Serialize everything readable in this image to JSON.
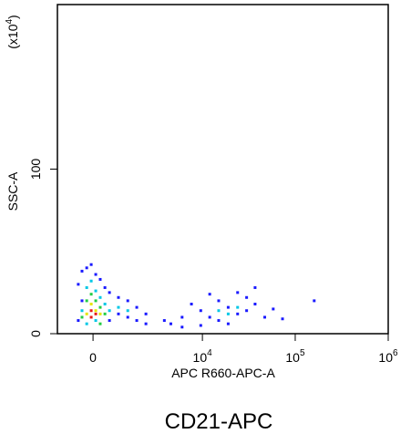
{
  "chart_data": {
    "type": "scatter",
    "title": "CD21-APC",
    "xlabel": "APC R660-APC-A",
    "ylabel": "SSC-A",
    "ylabel_unit": [
      "(x10",
      "4",
      ")"
    ],
    "xscale": "biexponential",
    "xlim": [
      -1340,
      1000000
    ],
    "ylim": [
      0,
      200
    ],
    "xticks": [
      0,
      {
        "value": 10000,
        "label": "10",
        "exponent": "4"
      },
      {
        "value": 100000,
        "label": "10",
        "exponent": "5"
      },
      {
        "value": 1000000,
        "label": "10",
        "exponent": "6"
      }
    ],
    "yticks": [
      0,
      100
    ],
    "series": [
      {
        "color": "#1a1aff",
        "x": [
          -500,
          -370,
          -210,
          -60,
          90,
          240,
          400,
          560,
          900,
          1300,
          1750,
          2300,
          3800,
          6000,
          7600,
          9600,
          12000,
          15000,
          19000,
          24000,
          30000,
          37000,
          47000,
          58000,
          73000,
          160000,
          -500,
          -370,
          560,
          1300,
          2300,
          9600,
          15000,
          24000,
          37000,
          12000,
          6000,
          4500,
          19000,
          30000,
          900,
          1750
        ],
        "values": [
          30,
          38,
          40,
          42,
          36,
          33,
          28,
          25,
          22,
          20,
          16,
          12,
          8,
          10,
          18,
          14,
          10,
          20,
          16,
          12,
          22,
          18,
          10,
          15,
          9,
          20,
          8,
          20,
          8,
          10,
          6,
          5,
          8,
          25,
          28,
          24,
          4,
          6,
          6,
          14,
          12,
          8
        ]
      },
      {
        "color": "#00c8e6",
        "x": [
          -210,
          -60,
          90,
          240,
          400,
          560,
          -370,
          900,
          1300,
          15000,
          19000,
          24000,
          -210,
          90
        ],
        "values": [
          28,
          32,
          26,
          22,
          18,
          14,
          14,
          16,
          14,
          14,
          12,
          16,
          6,
          8
        ]
      },
      {
        "color": "#22cc44",
        "x": [
          -210,
          -60,
          90,
          240,
          400,
          -370,
          240
        ],
        "values": [
          20,
          24,
          20,
          16,
          12,
          10,
          6
        ]
      },
      {
        "color": "#e6e600",
        "x": [
          -60,
          90,
          240,
          -210
        ],
        "values": [
          18,
          14,
          12,
          12
        ]
      },
      {
        "color": "#e61a1a",
        "x": [
          -60,
          90,
          -60
        ],
        "values": [
          14,
          12,
          10
        ]
      }
    ]
  }
}
